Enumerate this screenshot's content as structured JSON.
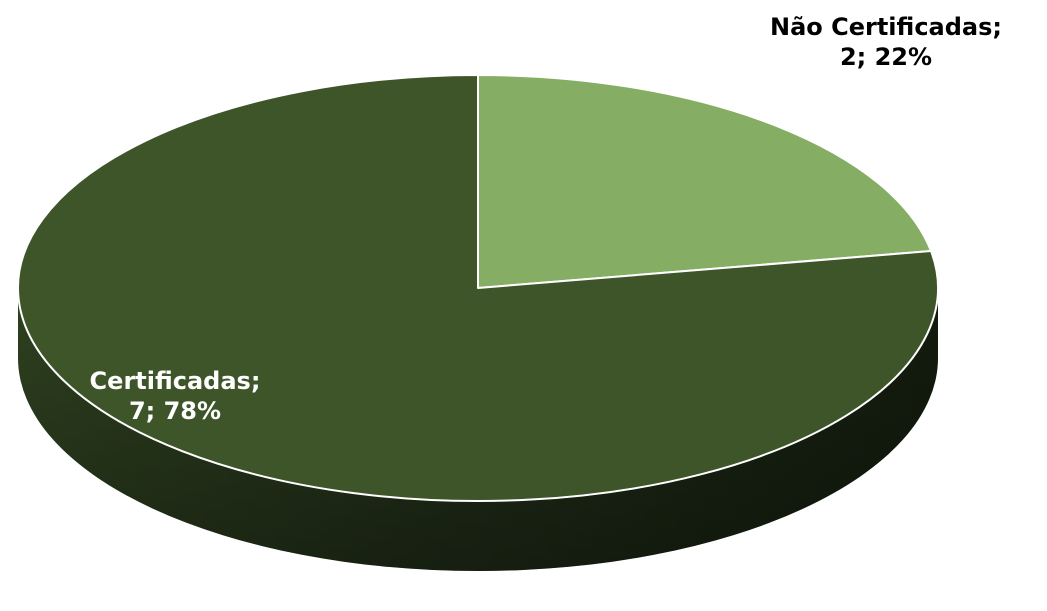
{
  "chart_data": {
    "type": "pie",
    "style": "3d",
    "title": "",
    "legend": "none",
    "label_color": "#000000",
    "slices": [
      {
        "label": "Não Certificadas",
        "value": 2,
        "percent": 22,
        "color": "#85ad63",
        "data_label": "Não Certificadas;\n2; 22%"
      },
      {
        "label": "Certificadas",
        "value": 7,
        "percent": 78,
        "color": "#3e552a",
        "label_color": "#ffffff",
        "data_label": "Certificadas;\n7; 78%"
      }
    ]
  }
}
